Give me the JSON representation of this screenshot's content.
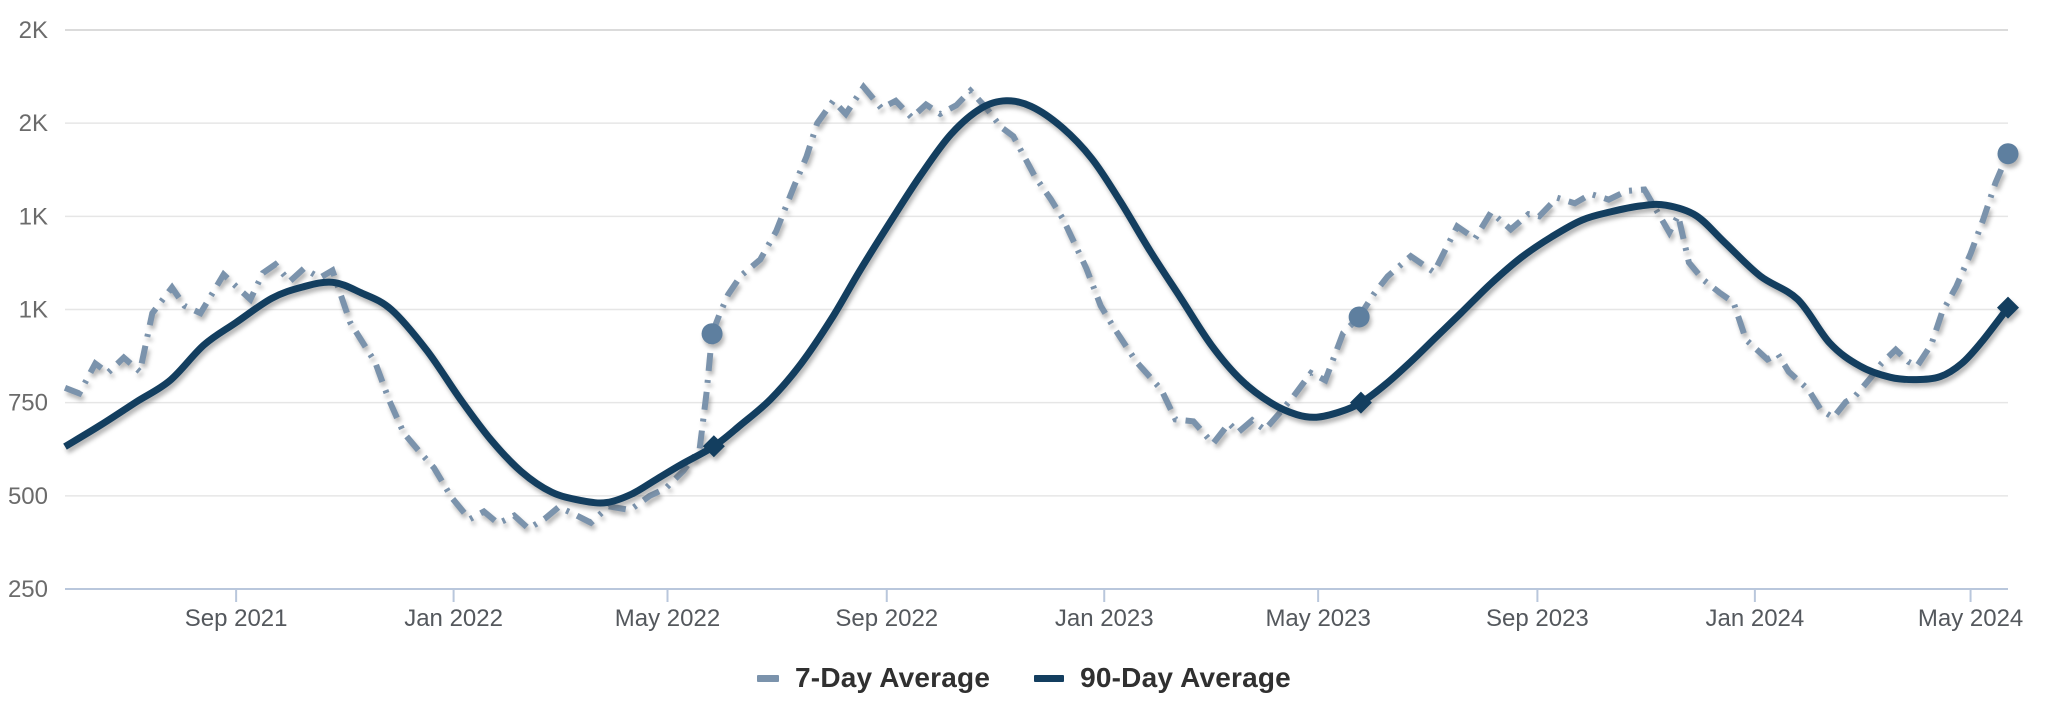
{
  "chart_data": {
    "type": "line",
    "title": "",
    "xlabel": "",
    "ylabel": "",
    "grid": true,
    "background": "#ffffff",
    "legend_position": "bottom-center",
    "x_axis": {
      "range": [
        "2021-05-28",
        "2024-05-22"
      ],
      "ticks": [
        {
          "date": "2021-09-01",
          "label": "Sep 2021"
        },
        {
          "date": "2022-01-01",
          "label": "Jan 2022"
        },
        {
          "date": "2022-05-01",
          "label": "May 2022"
        },
        {
          "date": "2022-09-01",
          "label": "Sep 2022"
        },
        {
          "date": "2023-01-01",
          "label": "Jan 2023"
        },
        {
          "date": "2023-05-01",
          "label": "May 2023"
        },
        {
          "date": "2023-09-01",
          "label": "Sep 2023"
        },
        {
          "date": "2024-01-01",
          "label": "Jan 2024"
        },
        {
          "date": "2024-05-01",
          "label": "May 2024"
        }
      ]
    },
    "y_axis": {
      "range": [
        250,
        1800
      ],
      "gridlines": [
        {
          "value": 250,
          "label": "250"
        },
        {
          "value": 500,
          "label": "500"
        },
        {
          "value": 750,
          "label": "750"
        },
        {
          "value": 1000,
          "label": "1K"
        },
        {
          "value": 1250,
          "label": "1K"
        },
        {
          "value": 1500,
          "label": "2K"
        },
        {
          "value": 1750,
          "label": "2K"
        }
      ]
    },
    "series": [
      {
        "name": "7-Day Average",
        "style": "dashed",
        "color": "#7b93ac",
        "marker": "circle",
        "marker_color": "#5e7f9f",
        "points": [
          [
            "2021-05-28",
            790
          ],
          [
            "2021-06-05",
            775
          ],
          [
            "2021-06-14",
            855
          ],
          [
            "2021-06-21",
            830
          ],
          [
            "2021-06-30",
            871
          ],
          [
            "2021-07-09",
            833
          ],
          [
            "2021-07-16",
            990
          ],
          [
            "2021-07-27",
            1059
          ],
          [
            "2021-08-03",
            1010
          ],
          [
            "2021-08-12",
            990
          ],
          [
            "2021-08-25",
            1094
          ],
          [
            "2021-09-01",
            1062
          ],
          [
            "2021-09-09",
            1027
          ],
          [
            "2021-09-16",
            1098
          ],
          [
            "2021-09-23",
            1121
          ],
          [
            "2021-10-01",
            1075
          ],
          [
            "2021-10-09",
            1110
          ],
          [
            "2021-10-18",
            1085
          ],
          [
            "2021-10-25",
            1105
          ],
          [
            "2021-11-04",
            965
          ],
          [
            "2021-11-18",
            858
          ],
          [
            "2021-11-26",
            755
          ],
          [
            "2021-12-04",
            669
          ],
          [
            "2021-12-13",
            618
          ],
          [
            "2021-12-21",
            575
          ],
          [
            "2021-12-31",
            495
          ],
          [
            "2022-01-10",
            437
          ],
          [
            "2022-01-18",
            458
          ],
          [
            "2022-01-26",
            426
          ],
          [
            "2022-02-04",
            447
          ],
          [
            "2022-02-12",
            412
          ],
          [
            "2022-02-21",
            438
          ],
          [
            "2022-03-01",
            470
          ],
          [
            "2022-03-10",
            450
          ],
          [
            "2022-03-19",
            428
          ],
          [
            "2022-03-29",
            472
          ],
          [
            "2022-04-10",
            462
          ],
          [
            "2022-04-21",
            500
          ],
          [
            "2022-04-30",
            520
          ],
          [
            "2022-05-10",
            568
          ],
          [
            "2022-05-19",
            625
          ],
          [
            "2022-05-23",
            780
          ],
          [
            "2022-05-26",
            935
          ],
          [
            "2022-05-30",
            985
          ],
          [
            "2022-06-04",
            1040
          ],
          [
            "2022-06-11",
            1090
          ],
          [
            "2022-06-22",
            1134
          ],
          [
            "2022-07-01",
            1210
          ],
          [
            "2022-07-11",
            1331
          ],
          [
            "2022-07-18",
            1410
          ],
          [
            "2022-07-24",
            1500
          ],
          [
            "2022-08-02",
            1560
          ],
          [
            "2022-08-09",
            1525
          ],
          [
            "2022-08-19",
            1597
          ],
          [
            "2022-08-29",
            1540
          ],
          [
            "2022-09-06",
            1560
          ],
          [
            "2022-09-15",
            1515
          ],
          [
            "2022-09-23",
            1550
          ],
          [
            "2022-10-01",
            1525
          ],
          [
            "2022-10-10",
            1548
          ],
          [
            "2022-10-18",
            1587
          ],
          [
            "2022-10-27",
            1540
          ],
          [
            "2022-11-04",
            1490
          ],
          [
            "2022-11-11",
            1465
          ],
          [
            "2022-11-23",
            1358
          ],
          [
            "2022-12-02",
            1296
          ],
          [
            "2022-12-09",
            1242
          ],
          [
            "2022-12-22",
            1110
          ],
          [
            "2022-12-30",
            1010
          ],
          [
            "2023-01-06",
            954
          ],
          [
            "2023-01-19",
            860
          ],
          [
            "2023-02-02",
            785
          ],
          [
            "2023-02-10",
            705
          ],
          [
            "2023-02-20",
            700
          ],
          [
            "2023-03-03",
            640
          ],
          [
            "2023-03-12",
            695
          ],
          [
            "2023-03-17",
            670
          ],
          [
            "2023-03-25",
            703
          ],
          [
            "2023-04-01",
            677
          ],
          [
            "2023-04-09",
            720
          ],
          [
            "2023-04-17",
            766
          ],
          [
            "2023-04-27",
            830
          ],
          [
            "2023-05-05",
            810
          ],
          [
            "2023-05-15",
            937
          ],
          [
            "2023-05-24",
            980
          ],
          [
            "2023-06-01",
            1040
          ],
          [
            "2023-06-09",
            1089
          ],
          [
            "2023-06-22",
            1143
          ],
          [
            "2023-07-05",
            1100
          ],
          [
            "2023-07-18",
            1223
          ],
          [
            "2023-07-28",
            1190
          ],
          [
            "2023-08-06",
            1261
          ],
          [
            "2023-08-17",
            1215
          ],
          [
            "2023-08-27",
            1256
          ],
          [
            "2023-09-02",
            1250
          ],
          [
            "2023-09-12",
            1300
          ],
          [
            "2023-09-22",
            1285
          ],
          [
            "2023-10-01",
            1310
          ],
          [
            "2023-10-11",
            1295
          ],
          [
            "2023-10-21",
            1318
          ],
          [
            "2023-10-31",
            1322
          ],
          [
            "2023-11-14",
            1207
          ],
          [
            "2023-11-19",
            1252
          ],
          [
            "2023-11-25",
            1126
          ],
          [
            "2023-12-03",
            1080
          ],
          [
            "2023-12-12",
            1046
          ],
          [
            "2023-12-20",
            1019
          ],
          [
            "2023-12-27",
            919
          ],
          [
            "2024-01-08",
            866
          ],
          [
            "2024-01-14",
            880
          ],
          [
            "2024-01-20",
            833
          ],
          [
            "2024-01-31",
            785
          ],
          [
            "2024-02-07",
            731
          ],
          [
            "2024-02-14",
            710
          ],
          [
            "2024-02-21",
            752
          ],
          [
            "2024-02-26",
            766
          ],
          [
            "2024-03-06",
            817
          ],
          [
            "2024-03-12",
            855
          ],
          [
            "2024-03-20",
            892
          ],
          [
            "2024-03-27",
            860
          ],
          [
            "2024-04-01",
            848
          ],
          [
            "2024-04-09",
            906
          ],
          [
            "2024-04-15",
            992
          ],
          [
            "2024-04-23",
            1062
          ],
          [
            "2024-05-01",
            1150
          ],
          [
            "2024-05-08",
            1240
          ],
          [
            "2024-05-15",
            1340
          ],
          [
            "2024-05-22",
            1418
          ]
        ],
        "markers": [
          {
            "date": "2022-05-26",
            "value": 935
          },
          {
            "date": "2023-05-24",
            "value": 980
          },
          {
            "date": "2024-05-22",
            "value": 1418
          }
        ]
      },
      {
        "name": "90-Day Average",
        "style": "solid",
        "color": "#133e5f",
        "marker": "diamond",
        "marker_color": "#133e5f",
        "points": [
          [
            "2021-05-28",
            632
          ],
          [
            "2021-06-17",
            690
          ],
          [
            "2021-07-07",
            752
          ],
          [
            "2021-07-26",
            810
          ],
          [
            "2021-08-14",
            905
          ],
          [
            "2021-09-01",
            965
          ],
          [
            "2021-09-21",
            1030
          ],
          [
            "2021-10-08",
            1060
          ],
          [
            "2021-10-25",
            1073
          ],
          [
            "2021-11-10",
            1045
          ],
          [
            "2021-11-27",
            1000
          ],
          [
            "2021-12-17",
            890
          ],
          [
            "2022-01-05",
            758
          ],
          [
            "2022-01-22",
            650
          ],
          [
            "2022-02-08",
            565
          ],
          [
            "2022-02-25",
            510
          ],
          [
            "2022-03-14",
            487
          ],
          [
            "2022-03-28",
            482
          ],
          [
            "2022-04-11",
            505
          ],
          [
            "2022-04-25",
            545
          ],
          [
            "2022-05-09",
            585
          ],
          [
            "2022-05-27",
            633
          ],
          [
            "2022-06-11",
            690
          ],
          [
            "2022-06-28",
            760
          ],
          [
            "2022-07-15",
            855
          ],
          [
            "2022-08-01",
            975
          ],
          [
            "2022-08-17",
            1105
          ],
          [
            "2022-09-03",
            1235
          ],
          [
            "2022-09-20",
            1360
          ],
          [
            "2022-10-07",
            1470
          ],
          [
            "2022-10-24",
            1540
          ],
          [
            "2022-11-07",
            1560
          ],
          [
            "2022-11-21",
            1545
          ],
          [
            "2022-12-08",
            1490
          ],
          [
            "2022-12-25",
            1405
          ],
          [
            "2023-01-10",
            1290
          ],
          [
            "2023-01-27",
            1155
          ],
          [
            "2023-02-13",
            1030
          ],
          [
            "2023-03-02",
            905
          ],
          [
            "2023-03-19",
            810
          ],
          [
            "2023-04-05",
            748
          ],
          [
            "2023-04-19",
            718
          ],
          [
            "2023-04-30",
            711
          ],
          [
            "2023-05-13",
            725
          ],
          [
            "2023-05-25",
            750
          ],
          [
            "2023-06-08",
            800
          ],
          [
            "2023-06-22",
            860
          ],
          [
            "2023-07-06",
            925
          ],
          [
            "2023-07-20",
            990
          ],
          [
            "2023-08-06",
            1070
          ],
          [
            "2023-08-23",
            1140
          ],
          [
            "2023-09-09",
            1195
          ],
          [
            "2023-09-26",
            1240
          ],
          [
            "2023-10-12",
            1262
          ],
          [
            "2023-10-29",
            1278
          ],
          [
            "2023-11-12",
            1280
          ],
          [
            "2023-11-29",
            1252
          ],
          [
            "2023-12-15",
            1180
          ],
          [
            "2024-01-04",
            1090
          ],
          [
            "2024-01-25",
            1027
          ],
          [
            "2024-02-12",
            910
          ],
          [
            "2024-02-29",
            848
          ],
          [
            "2024-03-17",
            818
          ],
          [
            "2024-03-31",
            812
          ],
          [
            "2024-04-14",
            820
          ],
          [
            "2024-04-26",
            855
          ],
          [
            "2024-05-07",
            912
          ],
          [
            "2024-05-22",
            1005
          ]
        ],
        "markers": [
          {
            "date": "2022-05-27",
            "value": 633
          },
          {
            "date": "2023-05-25",
            "value": 750
          },
          {
            "date": "2024-05-22",
            "value": 1005
          }
        ]
      }
    ]
  },
  "colors": {
    "background": "#ffffff",
    "gridline": "#e6e6e6",
    "gridline_top": "#cfcfcf",
    "axis_baseline": "#b9c7dc",
    "y_label_text": "#6b6b6b",
    "x_label_text": "#54585d",
    "legend_text": "#303030",
    "series_7day": "#7b93ac",
    "series_90day": "#133e5f"
  },
  "legend": {
    "items": [
      {
        "label": "7-Day Average"
      },
      {
        "label": "90-Day Average"
      }
    ]
  }
}
